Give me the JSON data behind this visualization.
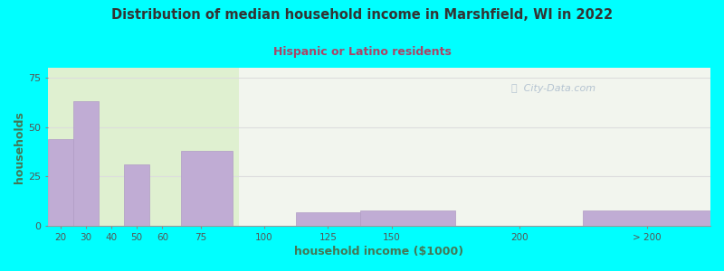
{
  "title": "Distribution of median household income in Marshfield, WI in 2022",
  "subtitle": "Hispanic or Latino residents",
  "xlabel": "household income ($1000)",
  "ylabel": "households",
  "background_outer": "#00FFFF",
  "bar_color": "#c0acd4",
  "bar_edge_color": "#b09cc4",
  "title_color": "#333333",
  "subtitle_color": "#aa4466",
  "axis_label_color": "#447755",
  "watermark": "ⓘ  City-Data.com",
  "bin_edges": [
    15,
    25,
    35,
    45,
    55,
    67.5,
    87.5,
    112.5,
    137.5,
    175,
    225,
    275
  ],
  "values": [
    44,
    63,
    0,
    31,
    0,
    38,
    0,
    7,
    8,
    0,
    8
  ],
  "ylim": [
    0,
    80
  ],
  "yticks": [
    0,
    25,
    50,
    75
  ],
  "watermark_color": "#aabbcc"
}
